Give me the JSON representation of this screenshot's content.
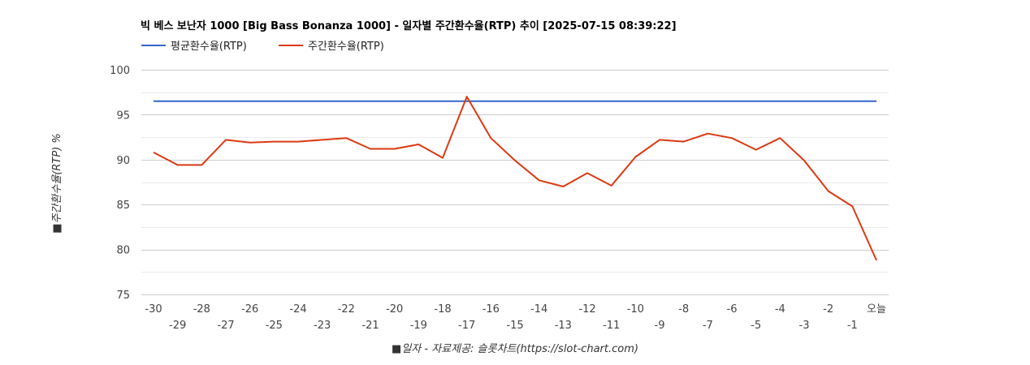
{
  "chart_data": {
    "type": "line",
    "title": "빅 베스 보난자 1000 [Big Bass Bonanza 1000] - 일자별 주간환수율(RTP) 추이 [2025-07-15 08:39:22]",
    "xlabel": "■일자 - 자료제공: 슬롯차트(https://slot-chart.com)",
    "ylabel": "■주간환수율(RTP) %",
    "ylim": [
      75,
      100
    ],
    "yticks": [
      "100",
      "95",
      "90",
      "85",
      "80",
      "75"
    ],
    "grid": true,
    "legend_position": "top-left",
    "categories": [
      "-30",
      "-29",
      "-28",
      "-27",
      "-26",
      "-25",
      "-24",
      "-23",
      "-22",
      "-21",
      "-20",
      "-19",
      "-18",
      "-17",
      "-16",
      "-15",
      "-14",
      "-13",
      "-12",
      "-11",
      "-10",
      "-9",
      "-8",
      "-7",
      "-6",
      "-5",
      "-4",
      "-3",
      "-2",
      "-1",
      "오늘"
    ],
    "series": [
      {
        "name": "평균환수율(RTP)",
        "color": "#3366cc",
        "values": [
          96.5,
          96.5,
          96.5,
          96.5,
          96.5,
          96.5,
          96.5,
          96.5,
          96.5,
          96.5,
          96.5,
          96.5,
          96.5,
          96.5,
          96.5,
          96.5,
          96.5,
          96.5,
          96.5,
          96.5,
          96.5,
          96.5,
          96.5,
          96.5,
          96.5,
          96.5,
          96.5,
          96.5,
          96.5,
          96.5,
          96.5
        ]
      },
      {
        "name": "주간환수율(RTP)",
        "color": "#dc3912",
        "values": [
          90.8,
          89.4,
          89.4,
          92.2,
          91.9,
          92.0,
          92.0,
          92.2,
          92.4,
          91.2,
          91.2,
          91.7,
          90.2,
          97.0,
          92.4,
          89.9,
          87.7,
          87.0,
          88.5,
          87.1,
          90.3,
          92.2,
          92.0,
          92.9,
          92.4,
          91.1,
          92.4,
          89.9,
          86.5,
          84.8,
          78.8
        ]
      }
    ]
  }
}
